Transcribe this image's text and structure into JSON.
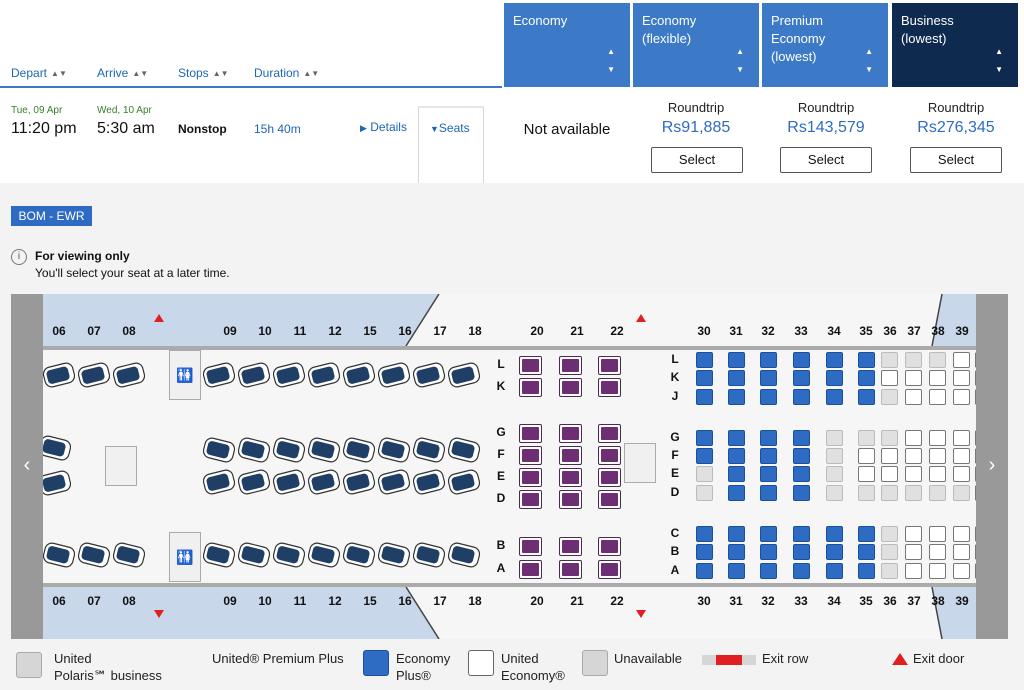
{
  "header": {
    "sort": [
      {
        "label": "Depart"
      },
      {
        "label": "Arrive"
      },
      {
        "label": "Stops"
      },
      {
        "label": "Duration"
      }
    ],
    "fares": [
      {
        "label": "Economy"
      },
      {
        "label": "Economy\n(flexible)"
      },
      {
        "label": "Premium\nEconomy\n(lowest)"
      },
      {
        "label": "Business\n(lowest)"
      }
    ]
  },
  "flight": {
    "depart_date": "Tue, 09 Apr",
    "depart_time": "11:20 pm",
    "arrive_date": "Wed, 10 Apr",
    "arrive_time": "5:30 am",
    "stops": "Nonstop",
    "duration": "15h 40m",
    "details_label": "Details",
    "seats_label": "Seats",
    "economy_status": "Not available",
    "prices": [
      {
        "type": "Roundtrip",
        "price": "Rs91,885",
        "select": "Select"
      },
      {
        "type": "Roundtrip",
        "price": "Rs143,579",
        "select": "Select"
      },
      {
        "type": "Roundtrip",
        "price": "Rs276,345",
        "select": "Select"
      }
    ]
  },
  "seatmap": {
    "route": "BOM - EWR",
    "info_title": "For viewing only",
    "info_text": "You'll select your seat at a later time.",
    "business_rows": [
      "06",
      "07",
      "08",
      "09",
      "10",
      "11",
      "12",
      "15",
      "16"
    ],
    "premium_rows": [
      "17",
      "18",
      "20",
      "21",
      "22"
    ],
    "economy_rows": [
      "30",
      "31",
      "32",
      "33",
      "34",
      "35",
      "36",
      "37",
      "38",
      "39"
    ],
    "premium_letters": [
      "L",
      "K",
      "G",
      "F",
      "E",
      "D",
      "B",
      "A"
    ],
    "economy_letters": [
      "L",
      "K",
      "J",
      "G",
      "F",
      "E",
      "D",
      "C",
      "B",
      "A"
    ],
    "icons": {
      "left": "chevron-left-icon",
      "right": "chevron-right-icon",
      "lavatory": "lavatory-icon",
      "galley": "galley-cup-icon"
    }
  },
  "legend": {
    "polaris": "United\nPolaris℠ business",
    "premium_plus": "United® Premium Plus",
    "economy_plus": "Economy\nPlus®",
    "united_economy": "United\nEconomy®",
    "unavailable": "Unavailable",
    "exit_row": "Exit row",
    "exit_door": "Exit door"
  },
  "colors": {
    "accent": "#3c79c7",
    "dark": "#0f2a4f",
    "price": "#2e6cc4",
    "premium": "#6d2e73",
    "exit": "#e02020"
  }
}
